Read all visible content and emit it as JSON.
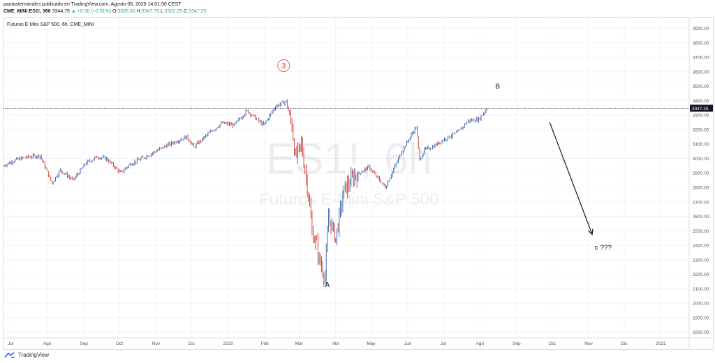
{
  "header": {
    "publisher_line": "pautasterminales publicado en TradingView.com, Agosto 08, 2020 14:01:50 CEST",
    "symbol": "CME_MINI:ES1!, 360",
    "last": "3344.75",
    "change": "+0.50 (+0.01%)",
    "o_label": "O:",
    "o_val": "3335.00",
    "h_label": "H:",
    "h_val": "3347.75",
    "l_label": "L:",
    "l_val": "3322.25",
    "c_label": "C:",
    "c_val": "3347.25",
    "up_arrow": "▲"
  },
  "footer": {
    "brand": "TradingView",
    "logo_icon": "tradingview-logo-icon"
  },
  "colors": {
    "up": "#2a5caa",
    "down": "#d0342c",
    "grid": "#f0f3fa",
    "text": "#131722",
    "watermark": "rgba(120,123,134,0.13)",
    "circle": "#e86a5b"
  },
  "chart_data": {
    "type": "line",
    "title": "Futuros E-Mini S&P 500, 6h, CME_MINI",
    "watermark_symbol": "ES1!, 6h",
    "watermark_name": "Futuros E-Mini S&P 500",
    "xlabel": "",
    "ylabel": "",
    "x_ticks": [
      "Jul",
      "Ago",
      "Sep",
      "Oct",
      "Nov",
      "Dic",
      "2020",
      "Feb",
      "Mar",
      "Abr",
      "May",
      "Jun",
      "Jul",
      "Ago",
      "Sep",
      "Oct",
      "Nov",
      "Dic",
      "2021"
    ],
    "x_tick_dates": [
      "2019-07-01",
      "2019-08-01",
      "2019-09-01",
      "2019-10-01",
      "2019-11-01",
      "2019-12-01",
      "2020-01-01",
      "2020-02-01",
      "2020-03-01",
      "2020-04-01",
      "2020-05-01",
      "2020-06-01",
      "2020-07-01",
      "2020-08-01",
      "2020-09-01",
      "2020-10-01",
      "2020-11-01",
      "2020-12-01",
      "2021-01-01"
    ],
    "x_range": [
      "2019-06-25",
      "2021-01-25"
    ],
    "y_ticks": [
      "3900.00",
      "3800.00",
      "3700.00",
      "3600.00",
      "3500.00",
      "3400.00",
      "3300.00",
      "3200.00",
      "3100.00",
      "3000.00",
      "2900.00",
      "2800.00",
      "2700.00",
      "2600.00",
      "2500.00",
      "2400.00",
      "2300.00",
      "2200.00",
      "2100.00",
      "2000.00",
      "1900.00",
      "1800.00"
    ],
    "ylim": [
      1760,
      3970
    ],
    "grid": true,
    "series": [
      {
        "x": [
          "2019-06-25",
          "2019-07-05",
          "2019-07-15",
          "2019-07-26",
          "2019-08-05",
          "2019-08-12",
          "2019-08-23",
          "2019-09-03",
          "2019-09-12",
          "2019-09-20",
          "2019-10-02",
          "2019-10-10",
          "2019-10-25",
          "2019-11-10",
          "2019-11-27",
          "2019-12-03",
          "2019-12-15",
          "2019-12-27",
          "2020-01-06",
          "2020-01-17",
          "2020-01-31",
          "2020-02-10",
          "2020-02-19",
          "2020-02-24",
          "2020-02-27",
          "2020-03-03",
          "2020-03-09",
          "2020-03-12",
          "2020-03-16",
          "2020-03-18",
          "2020-03-23",
          "2020-03-26",
          "2020-04-01",
          "2020-04-08",
          "2020-04-17",
          "2020-04-29",
          "2020-05-13",
          "2020-05-27",
          "2020-06-08",
          "2020-06-11",
          "2020-06-15",
          "2020-06-22",
          "2020-07-01",
          "2020-07-13",
          "2020-07-22",
          "2020-07-31",
          "2020-08-07"
        ],
        "y": [
          2950,
          2990,
          3010,
          3020,
          2830,
          2920,
          2850,
          2970,
          3010,
          3000,
          2900,
          2960,
          3020,
          3090,
          3150,
          3080,
          3170,
          3245,
          3230,
          3330,
          3230,
          3360,
          3395,
          3230,
          3000,
          3100,
          2750,
          2490,
          2400,
          2300,
          2185,
          2600,
          2450,
          2780,
          2880,
          2940,
          2800,
          3050,
          3220,
          2990,
          3060,
          3080,
          3130,
          3180,
          3260,
          3270,
          3347
        ]
      }
    ],
    "last_price_label": "3347.25",
    "annotations": [
      {
        "text": "3",
        "x": "2020-02-17",
        "y": 3642,
        "style": "circle"
      },
      {
        "text": "B",
        "x": "2020-08-14",
        "y": 3483,
        "style": "plain"
      },
      {
        "text": "A",
        "x": "2020-03-23",
        "y": 2112,
        "style": "plain"
      },
      {
        "text": "c ???",
        "x": "2020-11-06",
        "y": 2370,
        "style": "plain"
      }
    ],
    "arrow": {
      "from": [
        "2020-09-29",
        3250
      ],
      "to": [
        "2020-11-04",
        2475
      ]
    }
  }
}
